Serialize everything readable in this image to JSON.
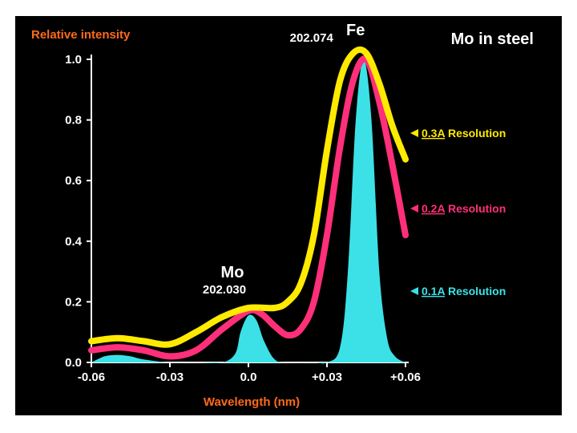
{
  "chart_data": {
    "type": "line",
    "title": "Mo in steel",
    "ylabel": "Relative intensity",
    "xlabel": "Wavelength (nm)",
    "xlim": [
      -0.06,
      0.06
    ],
    "ylim": [
      0,
      1.0
    ],
    "x_ticks": [
      "-0.06",
      "-0.03",
      "0.0",
      "+0.03",
      "+0.06"
    ],
    "x_tick_values": [
      -0.06,
      -0.03,
      0.0,
      0.03,
      0.06
    ],
    "y_ticks": [
      "0.0",
      "0.2",
      "0.4",
      "0.6",
      "0.8",
      "1.0"
    ],
    "y_tick_values": [
      0.0,
      0.2,
      0.4,
      0.6,
      0.8,
      1.0
    ],
    "peaks": [
      {
        "name": "Mo",
        "wavelength": "202.030",
        "x": 0.0,
        "y": 0.18
      },
      {
        "name": "Fe",
        "wavelength": "202.074",
        "x": 0.044,
        "y": 1.0
      }
    ],
    "series": [
      {
        "name": "0.3A Resolution",
        "label_parts": [
          "0.3A",
          " Resolution"
        ],
        "color": "#ffea00",
        "x": [
          -0.06,
          -0.05,
          -0.04,
          -0.03,
          -0.02,
          -0.01,
          0.0,
          0.01,
          0.015,
          0.02,
          0.025,
          0.03,
          0.035,
          0.04,
          0.045,
          0.05,
          0.055,
          0.06
        ],
        "y": [
          0.07,
          0.08,
          0.07,
          0.06,
          0.1,
          0.15,
          0.18,
          0.18,
          0.2,
          0.26,
          0.42,
          0.7,
          0.93,
          1.02,
          1.02,
          0.92,
          0.78,
          0.67
        ]
      },
      {
        "name": "0.2A Resolution",
        "label_parts": [
          "0.2A",
          " Resolution"
        ],
        "color": "#ff2f7a",
        "x": [
          -0.06,
          -0.05,
          -0.04,
          -0.03,
          -0.02,
          -0.01,
          0.0,
          0.005,
          0.01,
          0.015,
          0.02,
          0.025,
          0.03,
          0.035,
          0.04,
          0.045,
          0.05,
          0.055,
          0.06
        ],
        "y": [
          0.04,
          0.05,
          0.04,
          0.02,
          0.04,
          0.11,
          0.17,
          0.16,
          0.12,
          0.09,
          0.11,
          0.2,
          0.42,
          0.71,
          0.93,
          1.0,
          0.86,
          0.65,
          0.42
        ]
      },
      {
        "name": "0.1A Resolution",
        "label_parts": [
          "0.1A",
          " Resolution"
        ],
        "color": "#3be1e6",
        "x": [
          -0.06,
          -0.055,
          -0.05,
          -0.045,
          -0.04,
          -0.03,
          -0.02,
          -0.01,
          -0.005,
          -0.003,
          0.0,
          0.003,
          0.006,
          0.01,
          0.015,
          0.025,
          0.03,
          0.035,
          0.038,
          0.041,
          0.044,
          0.047,
          0.05,
          0.053,
          0.056,
          0.06
        ],
        "y": [
          0.0,
          0.02,
          0.025,
          0.02,
          0.01,
          0.0,
          0.0,
          0.0,
          0.03,
          0.1,
          0.155,
          0.14,
          0.07,
          0.01,
          0.0,
          0.0,
          0.0,
          0.05,
          0.3,
          0.8,
          1.0,
          0.8,
          0.3,
          0.08,
          0.02,
          0.0
        ]
      }
    ]
  }
}
